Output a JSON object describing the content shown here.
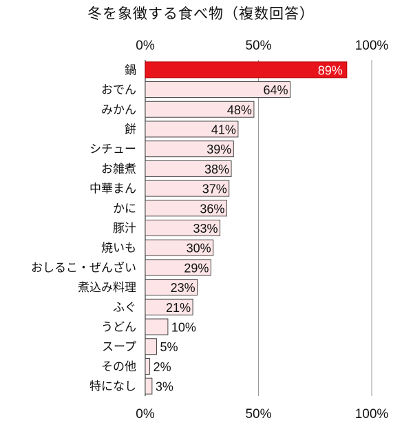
{
  "chart_data": {
    "type": "bar",
    "orientation": "horizontal",
    "title": "冬を象徴する食べ物（複数回答）",
    "categories": [
      "鍋",
      "おでん",
      "みかん",
      "餅",
      "シチュー",
      "お雑煮",
      "中華まん",
      "かに",
      "豚汁",
      "焼いも",
      "おしるこ・ぜんざい",
      "煮込み料理",
      "ふぐ",
      "うどん",
      "スープ",
      "その他",
      "特になし"
    ],
    "values": [
      89,
      64,
      48,
      41,
      39,
      38,
      37,
      36,
      33,
      30,
      29,
      23,
      21,
      10,
      5,
      2,
      3
    ],
    "value_labels": [
      "89%",
      "64%",
      "48%",
      "41%",
      "39%",
      "38%",
      "37%",
      "36%",
      "33%",
      "30%",
      "29%",
      "23%",
      "21%",
      "10%",
      "5%",
      "2%",
      "3%"
    ],
    "xlim": [
      0,
      100
    ],
    "x_ticks": [
      "0%",
      "50%",
      "100%"
    ],
    "tick_axes": [
      "top",
      "bottom"
    ],
    "highlight_index": 0,
    "colors": {
      "highlight": "#e8141c",
      "bar": "#fde4e6",
      "bar_edge": "#444444",
      "axis": "#555555"
    },
    "grid": true
  }
}
